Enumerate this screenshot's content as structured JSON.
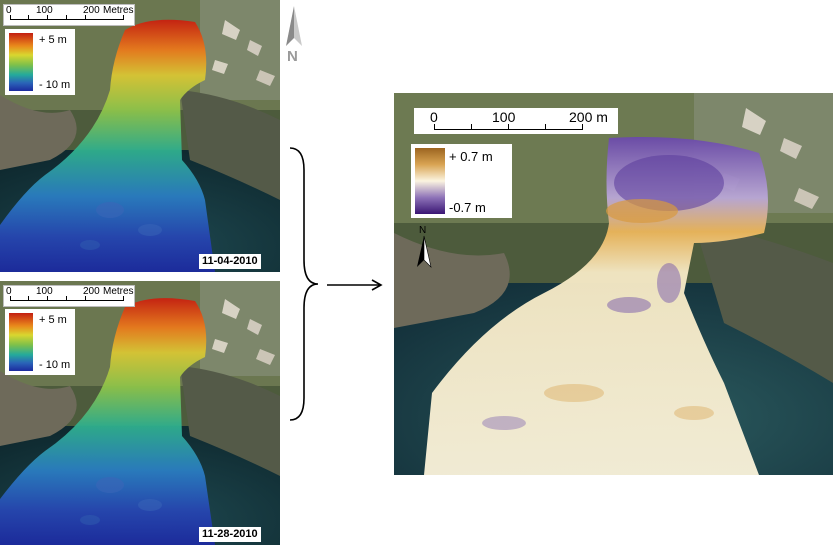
{
  "panels": {
    "top_left": {
      "scale": {
        "ticks": [
          "0",
          "100",
          "200"
        ],
        "unit": "Metres"
      },
      "legend": {
        "max": "+ 5 m",
        "min": "- 10 m"
      },
      "date": "11-04-2010"
    },
    "bottom_left": {
      "scale": {
        "ticks": [
          "0",
          "100",
          "200"
        ],
        "unit": "Metres"
      },
      "legend": {
        "max": "+ 5 m",
        "min": "- 10 m"
      },
      "date": "11-28-2010"
    },
    "difference": {
      "scale": {
        "ticks": [
          "0",
          "100",
          "200 m"
        ]
      },
      "legend": {
        "max": "+ 0.7 m",
        "min": "-0.7 m"
      },
      "north": "N"
    }
  },
  "north_arrow": {
    "label": "N"
  },
  "colors": {
    "elevation_high": "#c41f12",
    "elevation_mid": "#d9d62f",
    "elevation_low": "#1c2a9e",
    "diff_positive": "#9c6520",
    "diff_zero": "#fbf4e0",
    "diff_negative": "#3a1674"
  },
  "icons": [
    "north-arrow-icon",
    "curly-brace-icon",
    "arrow-right-icon"
  ]
}
